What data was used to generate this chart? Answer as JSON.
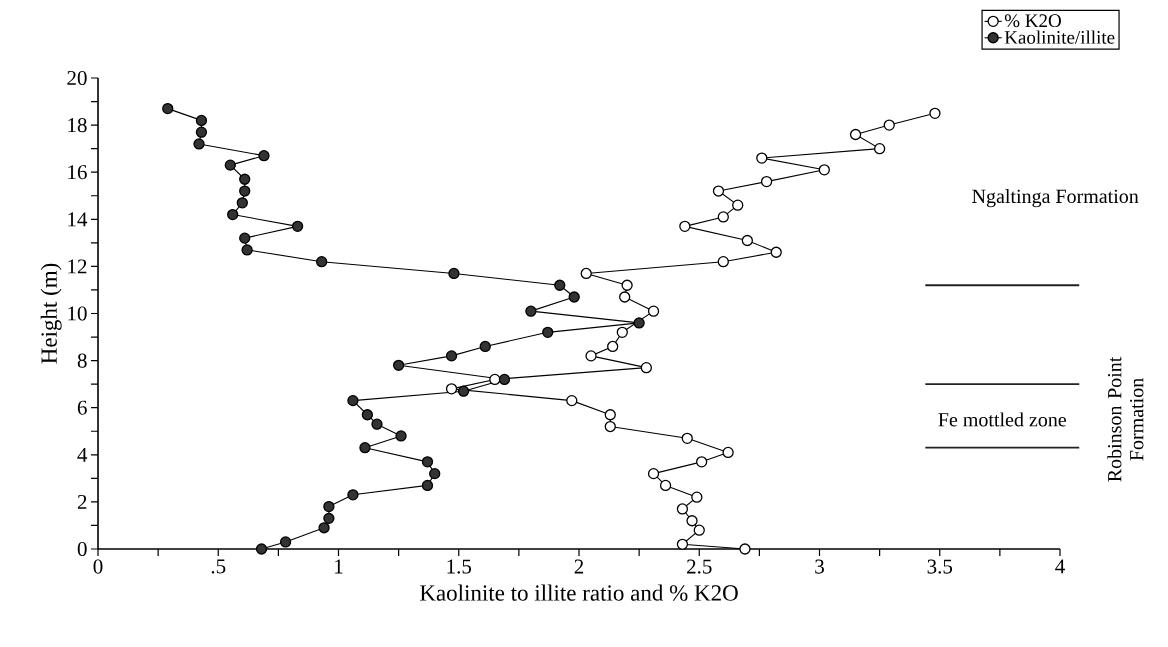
{
  "chart_data": {
    "type": "line",
    "xlabel": "Kaolinite to illite ratio and % K2O",
    "ylabel": "Height (m)",
    "xlim": [
      0,
      4
    ],
    "ylim": [
      0,
      20
    ],
    "xticks": [
      0,
      {
        "value": 0.25,
        "label": null
      },
      {
        "value": 0.5,
        "label": ".5"
      },
      {
        "value": 0.75,
        "label": null
      },
      1,
      {
        "value": 1.25,
        "label": null
      },
      1.5,
      {
        "value": 1.75,
        "label": null
      },
      2,
      {
        "value": 2.25,
        "label": null
      },
      2.5,
      {
        "value": 2.75,
        "label": null
      },
      3,
      {
        "value": 3.25,
        "label": null
      },
      3.5,
      {
        "value": 3.75,
        "label": null
      },
      4
    ],
    "yticks": [
      0,
      {
        "value": 1,
        "label": null
      },
      2,
      {
        "value": 3,
        "label": null
      },
      4,
      {
        "value": 5,
        "label": null
      },
      6,
      {
        "value": 7,
        "label": null
      },
      8,
      {
        "value": 9,
        "label": null
      },
      10,
      {
        "value": 11,
        "label": null
      },
      12,
      {
        "value": 13,
        "label": null
      },
      14,
      {
        "value": 15,
        "label": null
      },
      16,
      {
        "value": 17,
        "label": null
      },
      18,
      {
        "value": 19,
        "label": null
      },
      20
    ],
    "marker": "circle",
    "line_style": "solid",
    "grid": false,
    "legend": "top right",
    "series": [
      {
        "name": "% K2O",
        "color": "#ffffff",
        "x": [
          3.48,
          3.29,
          3.15,
          3.25,
          2.76,
          3.02,
          2.78,
          2.58,
          2.66,
          2.6,
          2.44,
          2.7,
          2.82,
          2.6,
          2.03,
          2.2,
          2.19,
          2.31,
          2.18,
          2.14,
          2.05,
          2.28,
          1.65,
          1.47,
          1.97,
          2.13,
          2.13,
          2.45,
          2.62,
          2.51,
          2.31,
          2.36,
          2.49,
          2.43,
          2.47,
          2.5,
          2.43,
          2.69
        ],
        "values": [
          18.5,
          18.0,
          17.6,
          17.0,
          16.6,
          16.1,
          15.6,
          15.2,
          14.6,
          14.1,
          13.7,
          13.1,
          12.6,
          12.2,
          11.7,
          11.2,
          10.7,
          10.1,
          9.2,
          8.6,
          8.2,
          7.7,
          7.2,
          6.8,
          6.3,
          5.7,
          5.2,
          4.7,
          4.1,
          3.7,
          3.2,
          2.7,
          2.2,
          1.7,
          1.2,
          0.8,
          0.2,
          0
        ]
      },
      {
        "name": "Kaolinite/illite",
        "color": "#333333",
        "x": [
          0.29,
          0.43,
          0.43,
          0.42,
          0.69,
          0.55,
          0.61,
          0.61,
          0.6,
          0.56,
          0.83,
          0.61,
          0.62,
          0.93,
          1.48,
          1.92,
          1.98,
          1.8,
          2.25,
          1.87,
          1.61,
          1.47,
          1.25,
          1.69,
          1.52,
          1.06,
          1.12,
          1.16,
          1.26,
          1.11,
          1.37,
          1.4,
          1.37,
          1.06,
          0.96,
          0.96,
          0.94,
          0.78,
          0.68
        ],
        "values": [
          18.7,
          18.2,
          17.7,
          17.2,
          16.7,
          16.3,
          15.7,
          15.2,
          14.7,
          14.2,
          13.7,
          13.2,
          12.7,
          12.2,
          11.7,
          11.2,
          10.7,
          10.1,
          9.6,
          9.2,
          8.6,
          8.2,
          7.8,
          7.2,
          6.7,
          6.3,
          5.7,
          5.3,
          4.8,
          4.3,
          3.7,
          3.2,
          2.7,
          2.3,
          1.8,
          1.3,
          0.9,
          0.3,
          0
        ]
      }
    ],
    "ref_lines": [
      {
        "axis": "y",
        "value": 11.2,
        "color": "#222222"
      },
      {
        "axis": "y",
        "value": 7.0,
        "color": "#222222"
      },
      {
        "axis": "y",
        "value": 4.3,
        "color": "#222222"
      }
    ],
    "annotations": [
      "Ngaltinga Formation",
      "Fe mottled zone",
      "Robinson Point Formation"
    ]
  }
}
